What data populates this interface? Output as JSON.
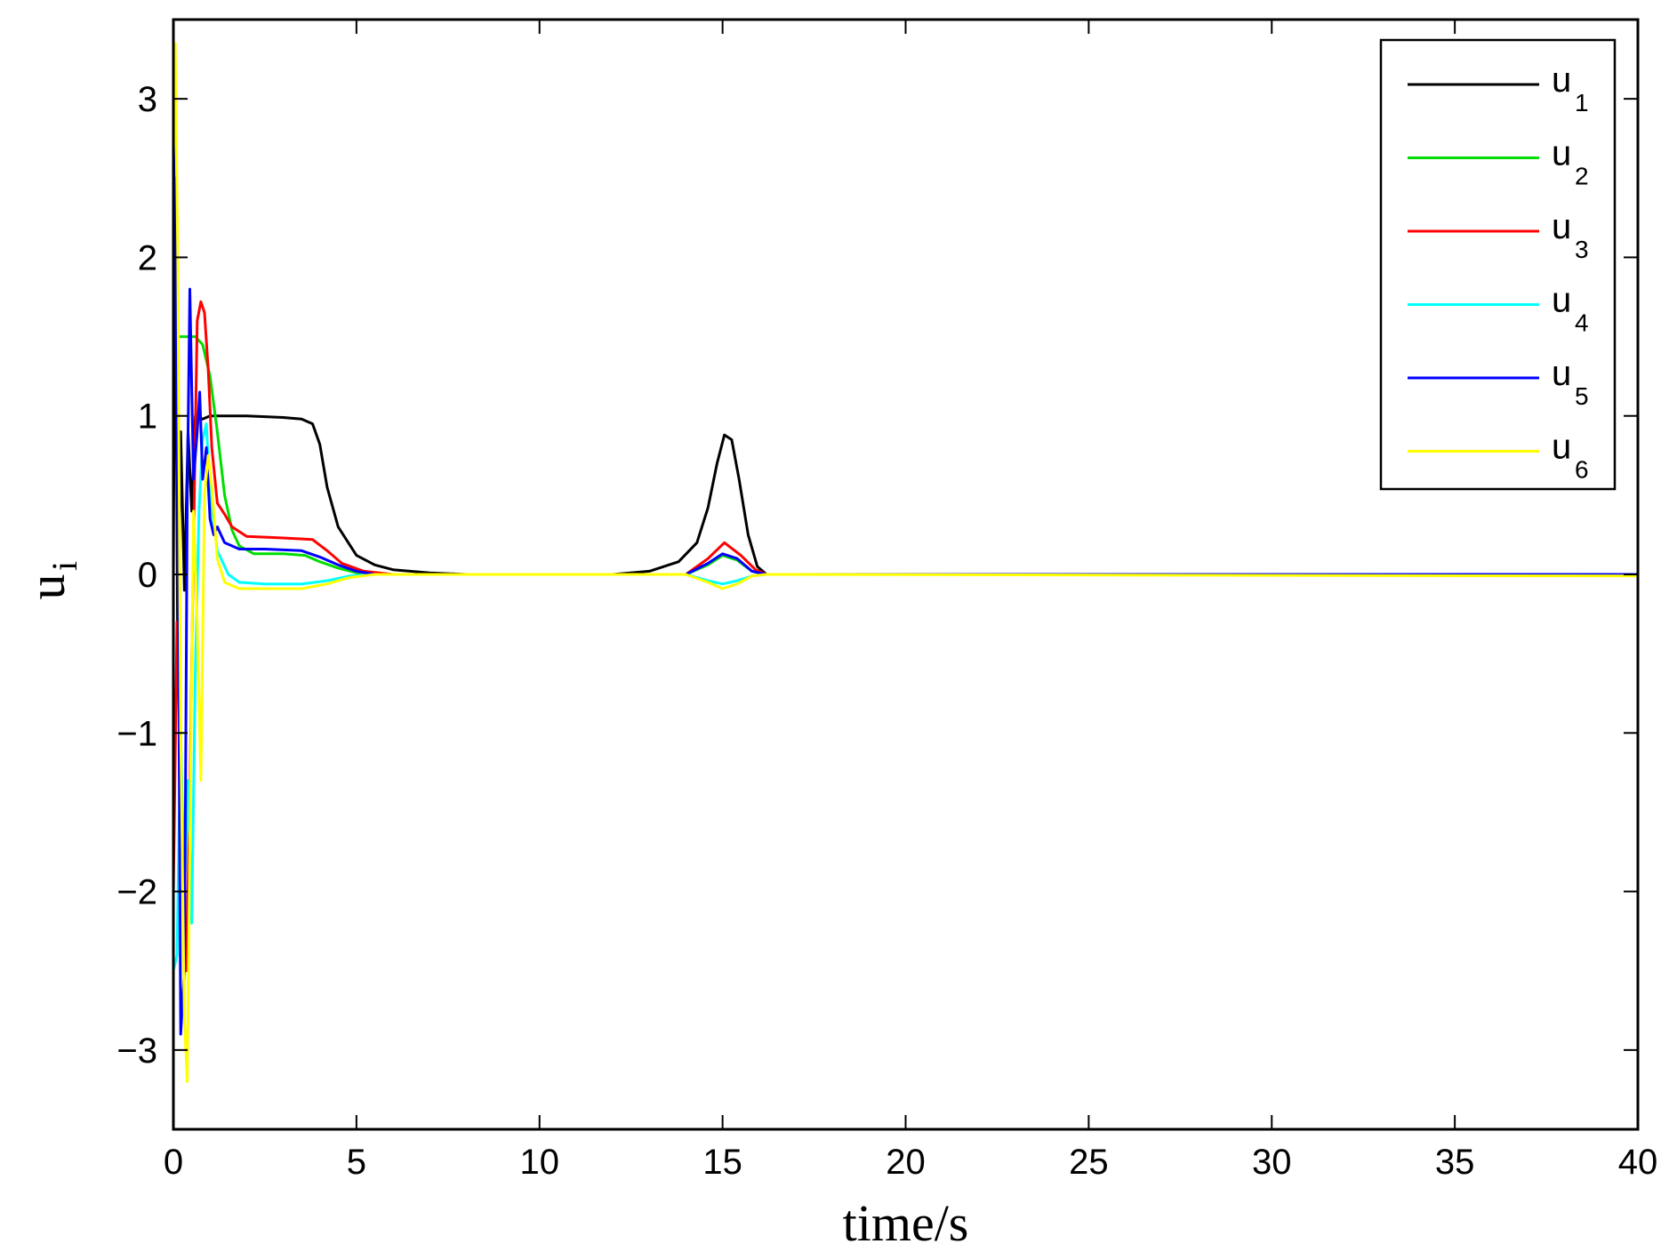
{
  "chart_data": {
    "type": "line",
    "xlabel": "time/s",
    "ylabel": "u",
    "ylabel_subscript": "i",
    "xlim": [
      0,
      40
    ],
    "ylim": [
      -3.5,
      3.5
    ],
    "xticks": [
      0,
      5,
      10,
      15,
      20,
      25,
      30,
      35,
      40
    ],
    "yticks": [
      -3,
      -2,
      -1,
      0,
      1,
      2,
      3
    ],
    "grid": false,
    "legend_position": "top-right",
    "series": [
      {
        "name": "u",
        "subscript": "1",
        "color": "#000000",
        "points": [
          [
            0,
            0
          ],
          [
            0.05,
            2.5
          ],
          [
            0.12,
            -0.6
          ],
          [
            0.2,
            0.9
          ],
          [
            0.3,
            -0.1
          ],
          [
            0.4,
            0.9
          ],
          [
            0.5,
            0.4
          ],
          [
            0.6,
            1.0
          ],
          [
            0.8,
            0.98
          ],
          [
            1.0,
            1.0
          ],
          [
            2.0,
            1.0
          ],
          [
            3.0,
            0.99
          ],
          [
            3.5,
            0.98
          ],
          [
            3.8,
            0.95
          ],
          [
            4.0,
            0.82
          ],
          [
            4.2,
            0.55
          ],
          [
            4.5,
            0.3
          ],
          [
            5.0,
            0.12
          ],
          [
            5.5,
            0.06
          ],
          [
            6.0,
            0.03
          ],
          [
            7.0,
            0.01
          ],
          [
            8.0,
            0.0
          ],
          [
            12.0,
            0.0
          ],
          [
            13.0,
            0.02
          ],
          [
            13.8,
            0.08
          ],
          [
            14.3,
            0.2
          ],
          [
            14.6,
            0.42
          ],
          [
            14.85,
            0.7
          ],
          [
            15.05,
            0.88
          ],
          [
            15.25,
            0.85
          ],
          [
            15.45,
            0.6
          ],
          [
            15.7,
            0.25
          ],
          [
            15.95,
            0.05
          ],
          [
            16.2,
            0.0
          ],
          [
            40.0,
            0.0
          ]
        ]
      },
      {
        "name": "u",
        "subscript": "2",
        "color": "#00dd00",
        "points": [
          [
            0,
            1.5
          ],
          [
            0.3,
            1.5
          ],
          [
            0.6,
            1.5
          ],
          [
            0.8,
            1.45
          ],
          [
            1.0,
            1.25
          ],
          [
            1.2,
            0.9
          ],
          [
            1.4,
            0.5
          ],
          [
            1.6,
            0.28
          ],
          [
            1.8,
            0.18
          ],
          [
            2.2,
            0.13
          ],
          [
            3.0,
            0.13
          ],
          [
            3.6,
            0.12
          ],
          [
            4.0,
            0.08
          ],
          [
            4.5,
            0.04
          ],
          [
            5.0,
            0.01
          ],
          [
            5.5,
            0.0
          ],
          [
            14.0,
            0.0
          ],
          [
            14.6,
            0.06
          ],
          [
            15.0,
            0.12
          ],
          [
            15.4,
            0.09
          ],
          [
            15.8,
            0.02
          ],
          [
            16.2,
            0.0
          ],
          [
            40.0,
            0.0
          ]
        ]
      },
      {
        "name": "u",
        "subscript": "3",
        "color": "#ff0000",
        "points": [
          [
            0,
            -2.0
          ],
          [
            0.1,
            -0.3
          ],
          [
            0.2,
            -1.3
          ],
          [
            0.35,
            -2.5
          ],
          [
            0.45,
            -1.4
          ],
          [
            0.55,
            0.2
          ],
          [
            0.65,
            1.6
          ],
          [
            0.75,
            1.72
          ],
          [
            0.85,
            1.65
          ],
          [
            0.95,
            1.3
          ],
          [
            1.05,
            0.8
          ],
          [
            1.2,
            0.45
          ],
          [
            1.4,
            0.38
          ],
          [
            1.6,
            0.3
          ],
          [
            2.0,
            0.24
          ],
          [
            3.0,
            0.23
          ],
          [
            3.8,
            0.22
          ],
          [
            4.2,
            0.15
          ],
          [
            4.6,
            0.07
          ],
          [
            5.2,
            0.02
          ],
          [
            6.0,
            0.0
          ],
          [
            14.0,
            0.0
          ],
          [
            14.6,
            0.1
          ],
          [
            15.05,
            0.2
          ],
          [
            15.5,
            0.12
          ],
          [
            15.9,
            0.03
          ],
          [
            16.2,
            0.0
          ],
          [
            40.0,
            0.0
          ]
        ]
      },
      {
        "name": "u",
        "subscript": "4",
        "color": "#00ffff",
        "points": [
          [
            0,
            -2.5
          ],
          [
            0.1,
            -2.4
          ],
          [
            0.2,
            -1.0
          ],
          [
            0.3,
            -2.0
          ],
          [
            0.4,
            -1.3
          ],
          [
            0.5,
            -2.2
          ],
          [
            0.6,
            -0.6
          ],
          [
            0.7,
            0.4
          ],
          [
            0.8,
            0.85
          ],
          [
            0.9,
            0.95
          ],
          [
            1.0,
            0.5
          ],
          [
            1.2,
            0.15
          ],
          [
            1.5,
            0.0
          ],
          [
            1.8,
            -0.05
          ],
          [
            2.5,
            -0.06
          ],
          [
            3.5,
            -0.06
          ],
          [
            4.2,
            -0.04
          ],
          [
            4.8,
            -0.01
          ],
          [
            5.5,
            0.0
          ],
          [
            14.0,
            0.0
          ],
          [
            14.6,
            -0.04
          ],
          [
            15.0,
            -0.06
          ],
          [
            15.4,
            -0.04
          ],
          [
            15.8,
            -0.01
          ],
          [
            16.2,
            0.0
          ],
          [
            40.0,
            0.0
          ]
        ]
      },
      {
        "name": "u",
        "subscript": "5",
        "color": "#0000ff",
        "points": [
          [
            0,
            2.8
          ],
          [
            0.05,
            2.0
          ],
          [
            0.12,
            0.5
          ],
          [
            0.2,
            -2.9
          ],
          [
            0.3,
            -2.5
          ],
          [
            0.38,
            0.5
          ],
          [
            0.45,
            1.8
          ],
          [
            0.55,
            0.6
          ],
          [
            0.65,
            0.9
          ],
          [
            0.72,
            1.15
          ],
          [
            0.8,
            0.6
          ],
          [
            0.9,
            0.8
          ],
          [
            1.0,
            0.35
          ],
          [
            1.1,
            0.25
          ],
          [
            1.2,
            0.3
          ],
          [
            1.4,
            0.2
          ],
          [
            1.8,
            0.16
          ],
          [
            2.5,
            0.16
          ],
          [
            3.5,
            0.15
          ],
          [
            4.0,
            0.11
          ],
          [
            4.5,
            0.06
          ],
          [
            5.0,
            0.02
          ],
          [
            5.5,
            0.0
          ],
          [
            14.0,
            0.0
          ],
          [
            14.6,
            0.07
          ],
          [
            15.0,
            0.13
          ],
          [
            15.4,
            0.1
          ],
          [
            15.8,
            0.02
          ],
          [
            16.2,
            0.0
          ],
          [
            40.0,
            0.0
          ]
        ]
      },
      {
        "name": "u",
        "subscript": "6",
        "color": "#ffff00",
        "points": [
          [
            0,
            2.6
          ],
          [
            0.05,
            3.35
          ],
          [
            0.12,
            2.0
          ],
          [
            0.2,
            -1.0
          ],
          [
            0.3,
            -2.8
          ],
          [
            0.38,
            -3.2
          ],
          [
            0.46,
            -1.5
          ],
          [
            0.55,
            0.4
          ],
          [
            0.65,
            -0.3
          ],
          [
            0.75,
            -1.3
          ],
          [
            0.85,
            0.5
          ],
          [
            0.95,
            0.75
          ],
          [
            1.05,
            0.55
          ],
          [
            1.2,
            0.1
          ],
          [
            1.4,
            -0.05
          ],
          [
            1.8,
            -0.09
          ],
          [
            3.5,
            -0.09
          ],
          [
            4.2,
            -0.06
          ],
          [
            4.8,
            -0.02
          ],
          [
            5.5,
            0.0
          ],
          [
            14.0,
            0.0
          ],
          [
            14.6,
            -0.05
          ],
          [
            15.0,
            -0.09
          ],
          [
            15.4,
            -0.06
          ],
          [
            15.8,
            -0.01
          ],
          [
            16.2,
            0.0
          ],
          [
            40.0,
            -0.01
          ]
        ]
      }
    ]
  }
}
